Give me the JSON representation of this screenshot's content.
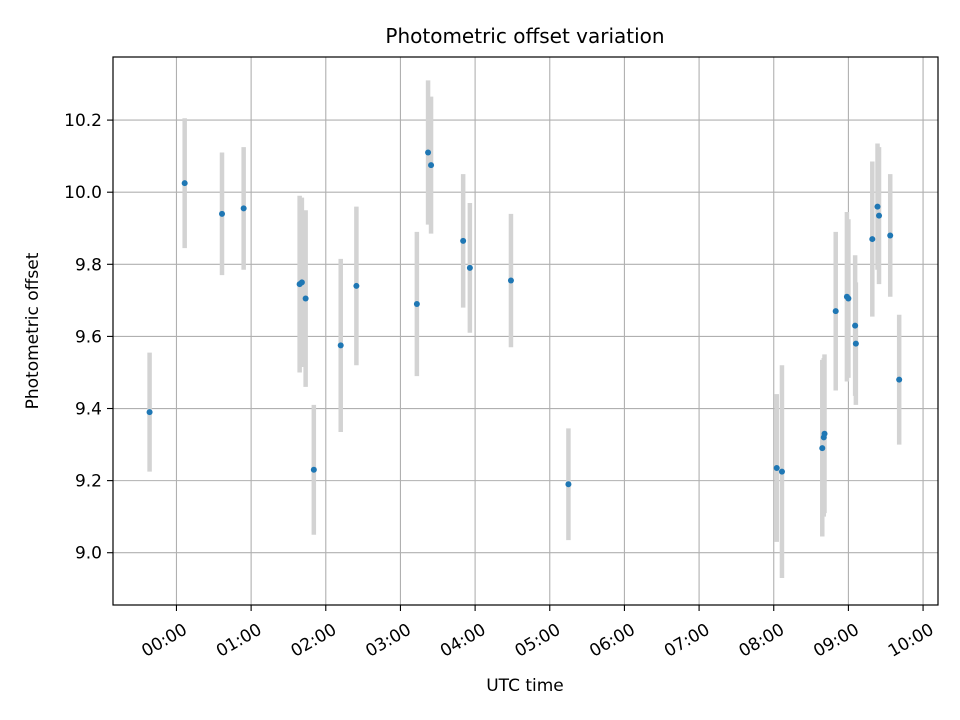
{
  "chart_data": {
    "type": "scatter",
    "title": "Photometric offset variation",
    "xlabel": "UTC time",
    "ylabel": "Photometric offset",
    "x_tick_labels": [
      "00:00",
      "01:00",
      "02:00",
      "03:00",
      "04:00",
      "05:00",
      "06:00",
      "07:00",
      "08:00",
      "09:00",
      "10:00"
    ],
    "x_ticks_hours": [
      0,
      1,
      2,
      3,
      4,
      5,
      6,
      7,
      8,
      9,
      10
    ],
    "y_ticks": [
      9.0,
      9.2,
      9.4,
      9.6,
      9.8,
      10.0,
      10.2
    ],
    "y_tick_labels": [
      "9.0",
      "9.2",
      "9.4",
      "9.6",
      "9.8",
      "10.0",
      "10.2"
    ],
    "xlim_hours": [
      -0.85,
      10.2
    ],
    "ylim": [
      8.855,
      10.375
    ],
    "grid": true,
    "colors": {
      "point": "#1f77b4",
      "errorbar": "#d3d3d3",
      "grid": "#b0b0b0"
    },
    "x_hours": [
      -0.36,
      0.11,
      0.61,
      0.9,
      1.65,
      1.68,
      1.73,
      1.84,
      2.2,
      2.41,
      3.22,
      3.37,
      3.41,
      3.84,
      3.93,
      4.48,
      5.25,
      8.04,
      8.11,
      8.65,
      8.67,
      8.68,
      8.83,
      8.98,
      9.0,
      9.09,
      9.1,
      9.32,
      9.39,
      9.41,
      9.56,
      9.68
    ],
    "y": [
      9.39,
      10.025,
      9.94,
      9.955,
      9.745,
      9.75,
      9.705,
      9.23,
      9.575,
      9.74,
      9.69,
      10.11,
      10.075,
      9.865,
      9.79,
      9.755,
      9.19,
      9.235,
      9.225,
      9.29,
      9.32,
      9.33,
      9.67,
      9.71,
      9.705,
      9.63,
      9.58,
      9.87,
      9.96,
      9.935,
      9.88,
      9.48
    ],
    "y_err": [
      0.165,
      0.18,
      0.17,
      0.17,
      0.245,
      0.235,
      0.245,
      0.18,
      0.24,
      0.22,
      0.2,
      0.2,
      0.19,
      0.185,
      0.18,
      0.185,
      0.155,
      0.205,
      0.295,
      0.245,
      0.22,
      0.22,
      0.22,
      0.235,
      0.22,
      0.195,
      0.17,
      0.215,
      0.175,
      0.19,
      0.17,
      0.18
    ]
  }
}
